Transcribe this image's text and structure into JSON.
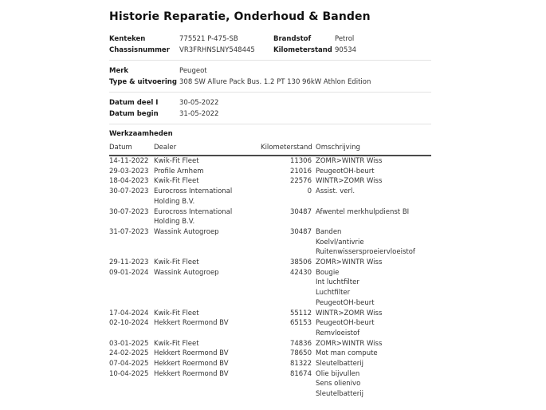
{
  "title": "Historie Reparatie, Onderhoud & Banden",
  "fields": {
    "kenteken": {
      "label": "Kenteken",
      "value": "775521 P-475-SB"
    },
    "brandstof": {
      "label": "Brandstof",
      "value": "Petrol"
    },
    "chassisnummer": {
      "label": "Chassisnummer",
      "value": "VR3FRHNSLNY548445"
    },
    "kilometerstand": {
      "label": "Kilometerstand",
      "value": "90534"
    },
    "merk": {
      "label": "Merk",
      "value": "Peugeot"
    },
    "type_uitvoering": {
      "label": "Type & uitvoering",
      "value": "308 SW Allure Pack Bus. 1.2 PT 130 96kW Athlon Edition"
    },
    "datum_deel_1": {
      "label": "Datum deel I",
      "value": "30-05-2022"
    },
    "datum_begin": {
      "label": "Datum begin",
      "value": "31-05-2022"
    }
  },
  "table": {
    "section_title": "Werkzaamheden",
    "columns": [
      "Datum",
      "Dealer",
      "Kilometerstand",
      "Omschrijving"
    ],
    "rows": [
      {
        "datum": "14-11-2022",
        "dealer": "Kwik-Fit Fleet",
        "kilometerstand": "11306",
        "omschrijving": [
          "ZOMR>WINTR Wiss"
        ]
      },
      {
        "datum": "29-03-2023",
        "dealer": "Profile Arnhem",
        "kilometerstand": "21016",
        "omschrijving": [
          "PeugeotOH-beurt"
        ]
      },
      {
        "datum": "18-04-2023",
        "dealer": "Kwik-Fit Fleet",
        "kilometerstand": "22576",
        "omschrijving": [
          "WINTR>ZOMR Wiss"
        ]
      },
      {
        "datum": "30-07-2023",
        "dealer": "Eurocross International Holding B.V.",
        "kilometerstand": "0",
        "omschrijving": [
          "Assist. verl."
        ]
      },
      {
        "datum": "30-07-2023",
        "dealer": "Eurocross International Holding B.V.",
        "kilometerstand": "30487",
        "omschrijving": [
          "Afwentel merkhulpdienst BI"
        ]
      },
      {
        "datum": "31-07-2023",
        "dealer": "Wassink Autogroep",
        "kilometerstand": "30487",
        "omschrijving": [
          "Banden",
          "Koelvl/antivrie",
          "Ruitenwissersproeiervloeistof"
        ]
      },
      {
        "datum": "29-11-2023",
        "dealer": "Kwik-Fit Fleet",
        "kilometerstand": "38506",
        "omschrijving": [
          "ZOMR>WINTR Wiss"
        ]
      },
      {
        "datum": "09-01-2024",
        "dealer": "Wassink Autogroep",
        "kilometerstand": "42430",
        "omschrijving": [
          "Bougie",
          "Int luchtfilter",
          "Luchtfilter",
          "PeugeotOH-beurt"
        ]
      },
      {
        "datum": "17-04-2024",
        "dealer": "Kwik-Fit Fleet",
        "kilometerstand": "55112",
        "omschrijving": [
          "WINTR>ZOMR Wiss"
        ]
      },
      {
        "datum": "02-10-2024",
        "dealer": "Hekkert Roermond BV",
        "kilometerstand": "65153",
        "omschrijving": [
          "PeugeotOH-beurt",
          "Remvloeistof"
        ]
      },
      {
        "datum": "03-01-2025",
        "dealer": "Kwik-Fit Fleet",
        "kilometerstand": "74836",
        "omschrijving": [
          "ZOMR>WINTR Wiss"
        ]
      },
      {
        "datum": "24-02-2025",
        "dealer": "Hekkert Roermond BV",
        "kilometerstand": "78650",
        "omschrijving": [
          "Mot man compute"
        ]
      },
      {
        "datum": "07-04-2025",
        "dealer": "Hekkert Roermond BV",
        "kilometerstand": "81322",
        "omschrijving": [
          "Sleutelbatterij"
        ]
      },
      {
        "datum": "10-04-2025",
        "dealer": "Hekkert Roermond BV",
        "kilometerstand": "81674",
        "omschrijving": [
          "Olie bijvullen",
          "Sens olienivo",
          "Sleutelbatterij"
        ]
      }
    ]
  },
  "colors": {
    "text": "#333333",
    "label_text": "#1a1a1a",
    "separator": "#e3e3e3",
    "table_header_rule": "#4a4a4a",
    "background": "#ffffff"
  }
}
